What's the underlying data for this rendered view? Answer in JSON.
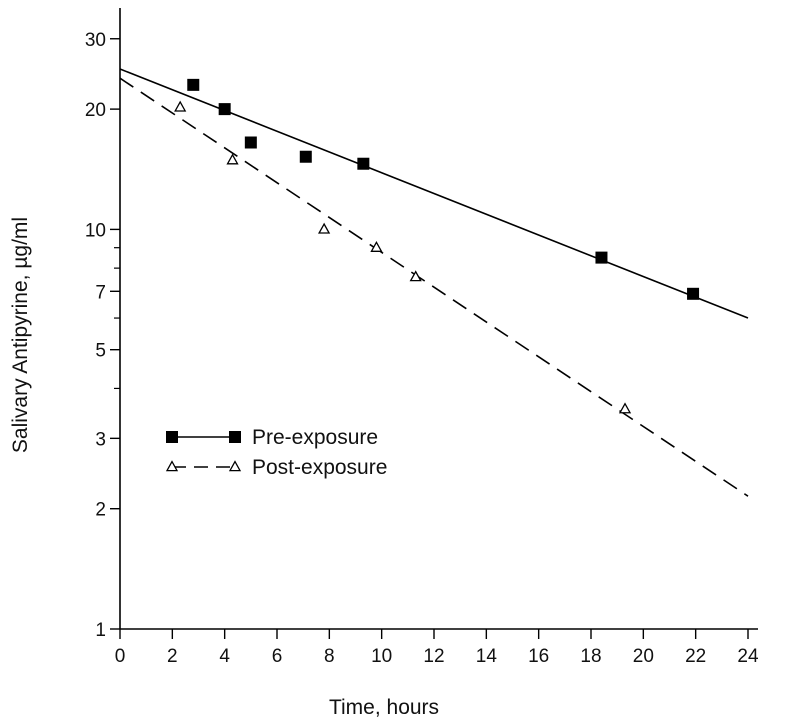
{
  "chart_data": {
    "type": "scatter",
    "title": "",
    "xlabel": "Time, hours",
    "ylabel": "Salivary Antipyrine, µg/ml",
    "xlim": [
      0,
      24
    ],
    "ylim": [
      1,
      35
    ],
    "y_scale": "log",
    "x_ticks": [
      0,
      2,
      4,
      6,
      8,
      10,
      12,
      14,
      16,
      18,
      20,
      22,
      24
    ],
    "y_ticks": [
      1,
      2,
      3,
      5,
      7,
      10,
      20,
      30
    ],
    "y_minor_ticks": [
      4,
      6,
      8,
      9
    ],
    "grid": false,
    "legend_position": "lower-left",
    "series": [
      {
        "name": "Pre-exposure",
        "marker": "filled-square",
        "line": "solid",
        "color": "#000000",
        "points": [
          {
            "x": 2.8,
            "y": 23
          },
          {
            "x": 4.0,
            "y": 20
          },
          {
            "x": 5.0,
            "y": 16.5
          },
          {
            "x": 7.1,
            "y": 15.2
          },
          {
            "x": 9.3,
            "y": 14.6
          },
          {
            "x": 18.4,
            "y": 8.5
          },
          {
            "x": 21.9,
            "y": 6.9
          }
        ],
        "fit_line": [
          {
            "x": 0,
            "y": 25.2
          },
          {
            "x": 24,
            "y": 6.0
          }
        ]
      },
      {
        "name": "Post-exposure",
        "marker": "open-triangle",
        "line": "dashed",
        "color": "#000000",
        "points": [
          {
            "x": 2.3,
            "y": 20.2
          },
          {
            "x": 4.3,
            "y": 14.9
          },
          {
            "x": 7.8,
            "y": 10.0
          },
          {
            "x": 9.8,
            "y": 9.0
          },
          {
            "x": 11.3,
            "y": 7.6
          },
          {
            "x": 19.3,
            "y": 3.55
          }
        ],
        "fit_line": [
          {
            "x": 0,
            "y": 23.9
          },
          {
            "x": 24,
            "y": 2.15
          }
        ]
      }
    ]
  }
}
